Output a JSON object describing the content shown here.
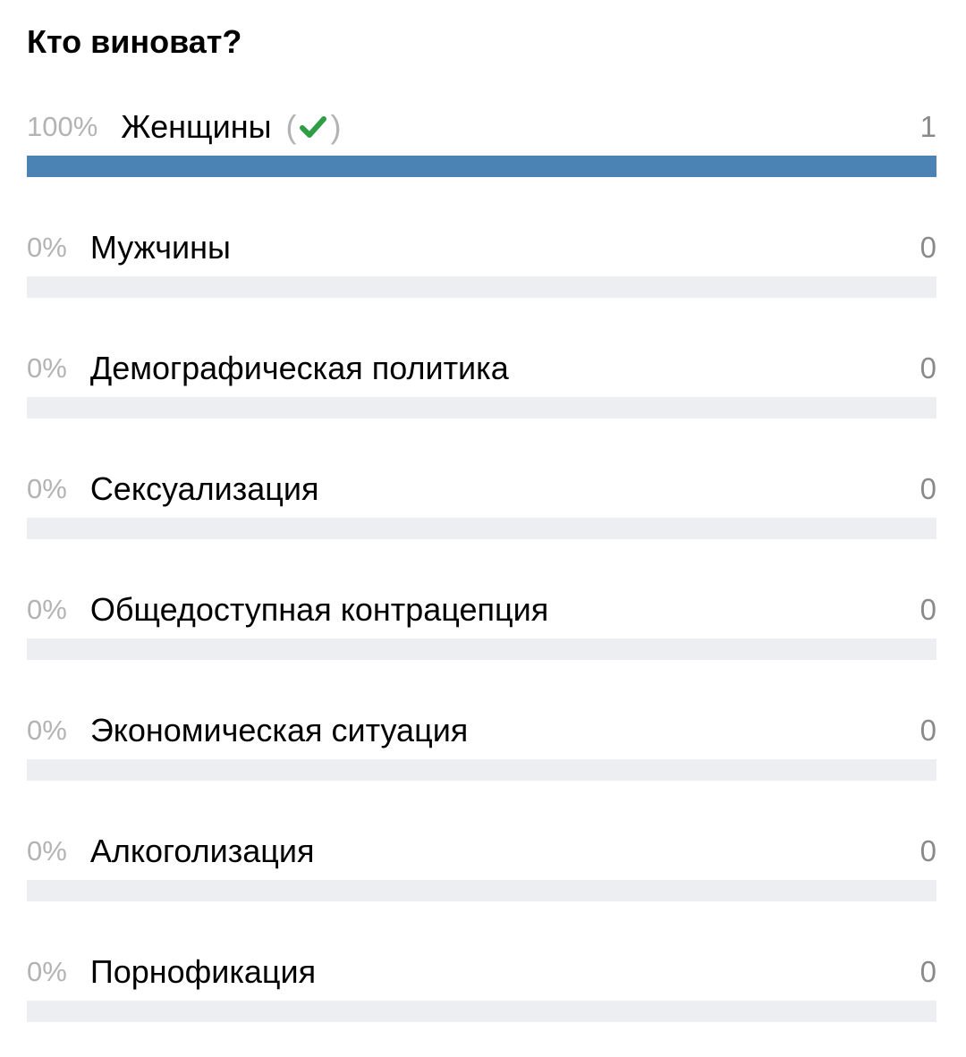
{
  "poll": {
    "question": "Кто виноват?",
    "accent_color": "#4a83b4",
    "track_color": "#edeef2",
    "check_color": "#2e9e44",
    "options": [
      {
        "percent": "100%",
        "label": "Женщины",
        "count": "1",
        "fraction": 1,
        "voted": true,
        "icon": "checkmark-icon"
      },
      {
        "percent": "0%",
        "label": "Мужчины",
        "count": "0",
        "fraction": 0
      },
      {
        "percent": "0%",
        "label": "Демографическая политика",
        "count": "0",
        "fraction": 0
      },
      {
        "percent": "0%",
        "label": "Сексуализация",
        "count": "0",
        "fraction": 0
      },
      {
        "percent": "0%",
        "label": "Общедоступная контрацепция",
        "count": "0",
        "fraction": 0
      },
      {
        "percent": "0%",
        "label": "Экономическая ситуация",
        "count": "0",
        "fraction": 0
      },
      {
        "percent": "0%",
        "label": "Алкоголизация",
        "count": "0",
        "fraction": 0
      },
      {
        "percent": "0%",
        "label": "Порнофикация",
        "count": "0",
        "fraction": 0
      }
    ]
  }
}
